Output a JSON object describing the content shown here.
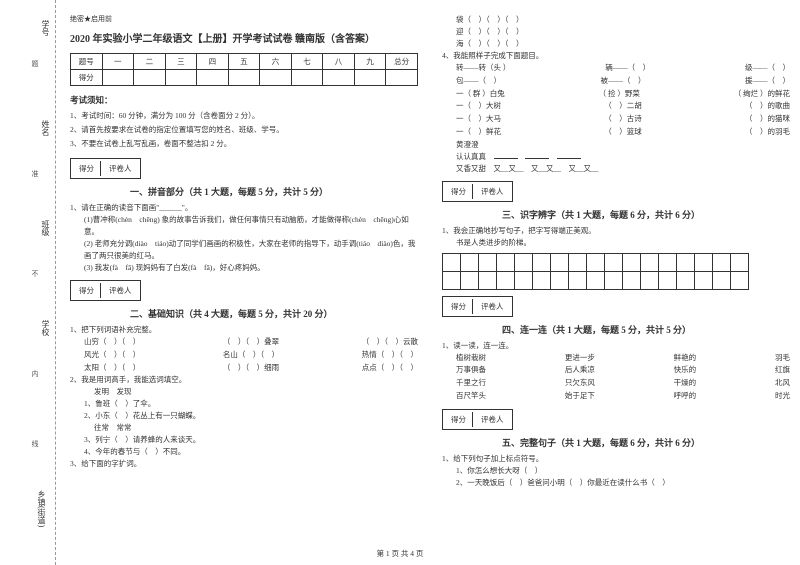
{
  "sidebar": {
    "labels": [
      "学号",
      "姓名",
      "班级",
      "学校",
      "乡镇(街道)"
    ],
    "mid": [
      "题",
      "准",
      "不",
      "内",
      "线",
      "封"
    ]
  },
  "header": {
    "secret": "绝密★启用前",
    "title": "2020 年实验小学二年级语文【上册】开学考试试卷 赣南版（含答案）"
  },
  "score_table": {
    "row1": [
      "题号",
      "一",
      "二",
      "三",
      "四",
      "五",
      "六",
      "七",
      "八",
      "九",
      "总分"
    ],
    "row2_label": "得分"
  },
  "notice": {
    "title": "考试须知：",
    "lines": [
      "1、考试时间：60 分钟，满分为 100 分（含卷面分 2 分）。",
      "2、请首先按要求在试卷的指定位置填写您的姓名、班级、学号。",
      "3、不要在试卷上乱写乱画，卷面不整洁扣 2 分。"
    ]
  },
  "sectbox": {
    "c1": "得分",
    "c2": "评卷人"
  },
  "s1": {
    "title": "一、拼音部分（共 1 大题，每题 5 分，共计 5 分）",
    "q1": "1、请在正确的读音下面画\"______\"。",
    "l1": "(1)曹冲称(chèn　chēng) 象的故事告诉我们，做任何事情只有动脑筋，才能做得称(chèn　chēng)心如意。",
    "l2": "(2) 老师充分调(diào　tiáo)动了同学们画画的积极性，大家在老师的指导下，动手调(tiáo　diào)色，我画了两只很美的红马。",
    "l3": "(3) 我发(fà　fā) 现妈妈有了白发(fà　fā)，好心疼妈妈。"
  },
  "s2": {
    "title": "二、基础知识（共 4 大题，每题 5 分，共计 20 分）",
    "q1": "1、把下列词语补充完整。",
    "rows1": [
      [
        "山穷（　）（　）",
        "（　）（　）叠翠",
        "（　）（　）云散"
      ],
      [
        "风光（　）（　）",
        "名山（　）（　）",
        "热情（　）（　）"
      ],
      [
        "太阳（　）（　）",
        "（　）（　）细雨",
        "点点（　）（　）"
      ]
    ],
    "q2": "2、我是用词高手，我能选词填空。",
    "w1": "发明　发现",
    "w1a": "1、鲁班（　）了伞。",
    "w1b": "2、小东（　）花丛上有一只蝴蝶。",
    "w2": "往常　常常",
    "w2a": "3、列宁（　）请养蜂的人来谈天。",
    "w2b": "4、今年的春节与（　）不同。",
    "q3": "3、给下面的字扩词。"
  },
  "right_top": {
    "lines": [
      "袋（　）（　）（　）",
      "迎（　）（　）（　）",
      "海（　）（　）（　）"
    ],
    "q4": "4、我能照样子完成下面题目。",
    "rows": [
      [
        "转——转（头 ）",
        "辆——（　）",
        "级——（　）"
      ],
      [
        "包——（　）",
        "被——（　）",
        "援——（　）"
      ],
      [
        "一（ 群 ）白兔",
        "（ 捡 ）野菜",
        "（ 绚烂 ）的鲜花"
      ],
      [
        "一（　）大树",
        "（　）二胡",
        "（　）的歌曲"
      ],
      [
        "一（　）大马",
        "（　）古诗",
        "（　）的猫咪"
      ],
      [
        "一（　）鲜花",
        "（　）篮球",
        "（　）的羽毛"
      ]
    ],
    "h1": "黄澄澄",
    "h2": "认认真真",
    "h2r": [
      "____又____",
      "____又____",
      "____又____"
    ],
    "h3": "又香又甜　又__又__　又__又__　又__又__"
  },
  "s3": {
    "title": "三、识字辨字（共 1 大题，每题 6 分，共计 6 分）",
    "q1": "1、我会正确地抄写句子，把字写得端正美观。",
    "l1": "书是人类进步的阶梯。"
  },
  "s4": {
    "title": "四、连一连（共 1 大题，每题 5 分，共计 5 分）",
    "q1": "1、读一读，连一连。",
    "rows": [
      [
        "植树栽树",
        "更进一步",
        "鲜艳的",
        "羽毛"
      ],
      [
        "万事俱备",
        "后人乘凉",
        "快乐的",
        "红旗"
      ],
      [
        "千里之行",
        "只欠东风",
        "干燥的",
        "北风"
      ],
      [
        "百尺竿头",
        "始于足下",
        "呼呼的",
        "时光"
      ]
    ]
  },
  "s5": {
    "title": "五、完整句子（共 1 大题，每题 6 分，共计 6 分）",
    "q1": "1、给下列句子加上标点符号。",
    "l1": "1、你怎么想长大呀（　）",
    "l2": "2、一天晚饭后（　）爸爸问小明（　）你最近在读什么书（　）"
  },
  "footer": "第 1 页 共 4 页"
}
